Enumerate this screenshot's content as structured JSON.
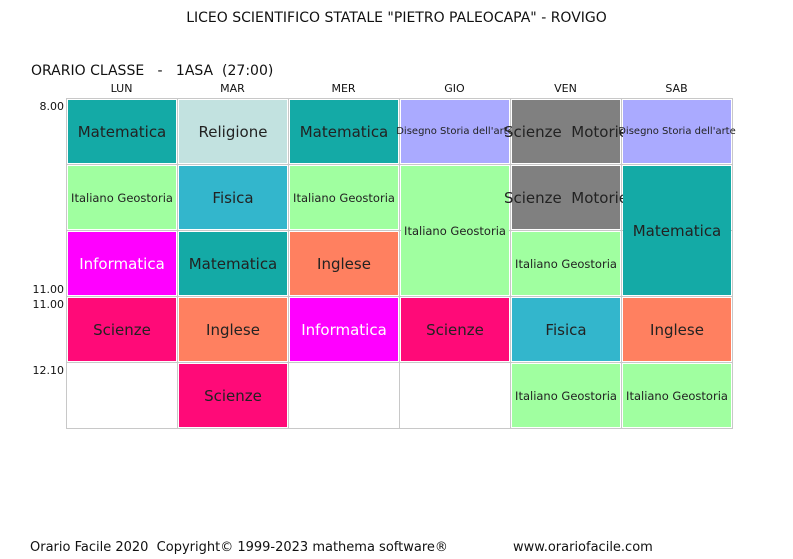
{
  "header": {
    "title": "LICEO SCIENTIFICO STATALE \"PIETRO PALEOCAPA\" - ROVIGO",
    "class_label": "ORARIO CLASSE   -   1ASA  (27:00)"
  },
  "days": [
    "LUN",
    "MAR",
    "MER",
    "GIO",
    "VEN",
    "SAB"
  ],
  "times": [
    {
      "label": "8.00",
      "row": 0,
      "edge": "top"
    },
    {
      "label": "11.00",
      "row": 2,
      "edge": "bottom"
    },
    {
      "label": "11.00",
      "row": 3,
      "edge": "top"
    },
    {
      "label": "12.10",
      "row": 4,
      "edge": "top"
    }
  ],
  "cells": [
    {
      "day": 0,
      "row": 0,
      "span": 1,
      "subject": "Matematica",
      "color": "#14aaa6",
      "size": "big"
    },
    {
      "day": 1,
      "row": 0,
      "span": 1,
      "subject": "Religione",
      "color": "#c2e2e0",
      "size": "big"
    },
    {
      "day": 2,
      "row": 0,
      "span": 1,
      "subject": "Matematica",
      "color": "#14aaa6",
      "size": "big"
    },
    {
      "day": 3,
      "row": 0,
      "span": 1,
      "subject": "Disegno Storia dell'arte",
      "color": "#aaaaff",
      "size": "tiny"
    },
    {
      "day": 4,
      "row": 0,
      "span": 1,
      "subject": "Scienze  Motorie",
      "color": "#808080",
      "size": "big"
    },
    {
      "day": 5,
      "row": 0,
      "span": 1,
      "subject": "Disegno Storia dell'arte",
      "color": "#aaaaff",
      "size": "tiny"
    },
    {
      "day": 0,
      "row": 1,
      "span": 1,
      "subject": "Italiano Geostoria",
      "color": "#a0ffa0",
      "size": "small"
    },
    {
      "day": 1,
      "row": 1,
      "span": 1,
      "subject": "Fisica",
      "color": "#33b6cc",
      "size": "big"
    },
    {
      "day": 2,
      "row": 1,
      "span": 1,
      "subject": "Italiano Geostoria",
      "color": "#a0ffa0",
      "size": "small"
    },
    {
      "day": 3,
      "row": 1,
      "span": 2,
      "subject": "Italiano Geostoria",
      "color": "#a0ffa0",
      "size": "small"
    },
    {
      "day": 4,
      "row": 1,
      "span": 1,
      "subject": "Scienze  Motorie",
      "color": "#808080",
      "size": "big"
    },
    {
      "day": 5,
      "row": 1,
      "span": 2,
      "subject": "Matematica",
      "color": "#14aaa6",
      "size": "big"
    },
    {
      "day": 0,
      "row": 2,
      "span": 1,
      "subject": "Informatica",
      "color": "#ff00ff",
      "size": "big",
      "light": true
    },
    {
      "day": 1,
      "row": 2,
      "span": 1,
      "subject": "Matematica",
      "color": "#14aaa6",
      "size": "big"
    },
    {
      "day": 2,
      "row": 2,
      "span": 1,
      "subject": "Inglese",
      "color": "#ff8060",
      "size": "big"
    },
    {
      "day": 4,
      "row": 2,
      "span": 1,
      "subject": "Italiano Geostoria",
      "color": "#a0ffa0",
      "size": "small"
    },
    {
      "day": 0,
      "row": 3,
      "span": 1,
      "subject": "Scienze",
      "color": "#ff0a78",
      "size": "big"
    },
    {
      "day": 1,
      "row": 3,
      "span": 1,
      "subject": "Inglese",
      "color": "#ff8060",
      "size": "big"
    },
    {
      "day": 2,
      "row": 3,
      "span": 1,
      "subject": "Informatica",
      "color": "#ff00ff",
      "size": "big",
      "light": true
    },
    {
      "day": 3,
      "row": 3,
      "span": 1,
      "subject": "Scienze",
      "color": "#ff0a78",
      "size": "big"
    },
    {
      "day": 4,
      "row": 3,
      "span": 1,
      "subject": "Fisica",
      "color": "#33b6cc",
      "size": "big"
    },
    {
      "day": 5,
      "row": 3,
      "span": 1,
      "subject": "Inglese",
      "color": "#ff8060",
      "size": "big"
    },
    {
      "day": 1,
      "row": 4,
      "span": 1,
      "subject": "Scienze",
      "color": "#ff0a78",
      "size": "big"
    },
    {
      "day": 4,
      "row": 4,
      "span": 1,
      "subject": "Italiano Geostoria",
      "color": "#a0ffa0",
      "size": "small"
    },
    {
      "day": 5,
      "row": 4,
      "span": 1,
      "subject": "Italiano Geostoria",
      "color": "#a0ffa0",
      "size": "small"
    }
  ],
  "footer": {
    "copyright": "Orario Facile 2020  Copyright© 1999-2023 mathema software®",
    "url": "www.orariofacile.com"
  }
}
